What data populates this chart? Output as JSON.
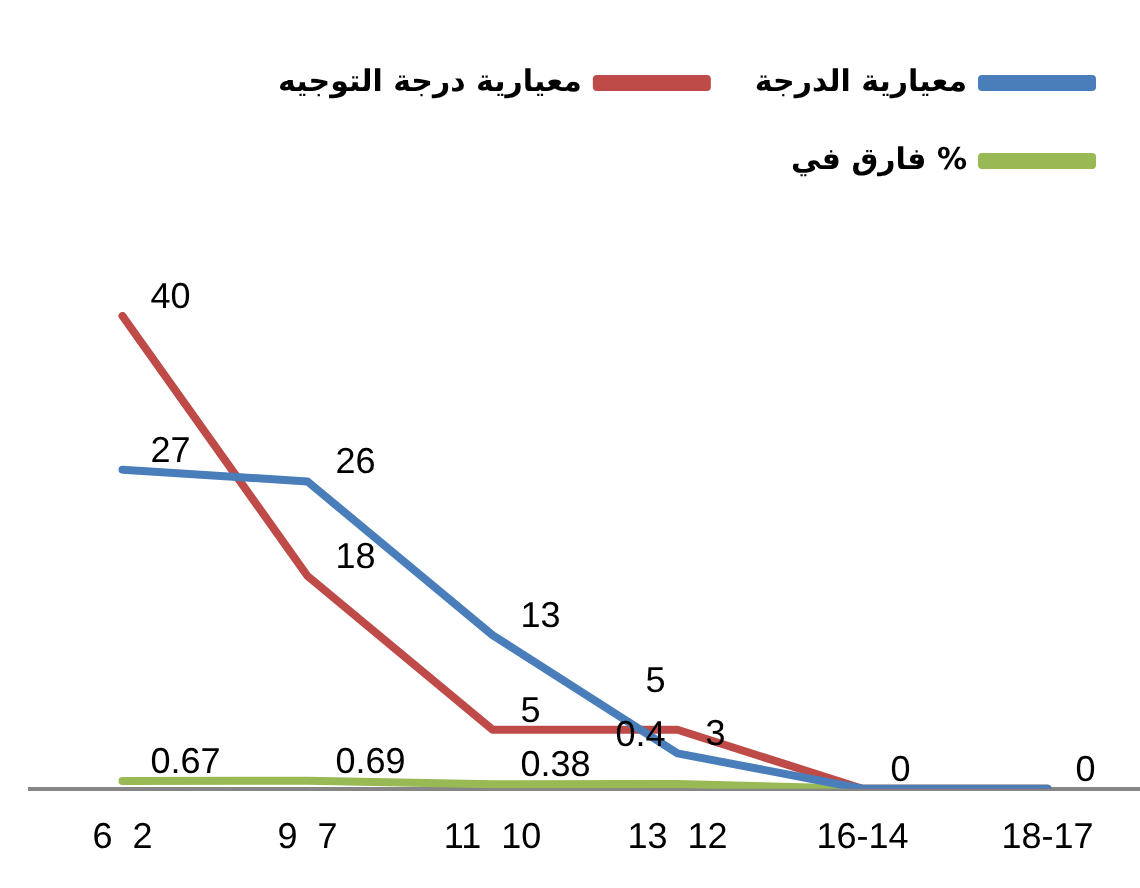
{
  "chart_data": {
    "type": "line",
    "categories": [
      "6  2",
      "9  7",
      "11  10",
      "13  12",
      "16-14",
      "18-17"
    ],
    "series": [
      {
        "name": "معيارية الدرجة",
        "color": "#4a7ebb",
        "values": [
          27,
          26,
          13,
          3,
          0,
          0
        ],
        "value_labels": [
          "27",
          "26",
          "13",
          "3",
          "0",
          "0"
        ]
      },
      {
        "name": "معيارية درجة التوجيه",
        "color": "#be4b48",
        "values": [
          40,
          18,
          5,
          5,
          0,
          0
        ],
        "value_labels": [
          "40",
          "18",
          "5",
          "5",
          null,
          null
        ]
      },
      {
        "name": "فارق في %",
        "color": "#98b954",
        "values": [
          0.67,
          0.69,
          0.38,
          0.4,
          0,
          0
        ],
        "value_labels": [
          "0.67",
          "0.69",
          "0.38",
          "0.4",
          null,
          null
        ]
      }
    ],
    "tick_labels": "x",
    "grid": false,
    "legend": "top",
    "marker": "none",
    "line_style": "solid"
  }
}
